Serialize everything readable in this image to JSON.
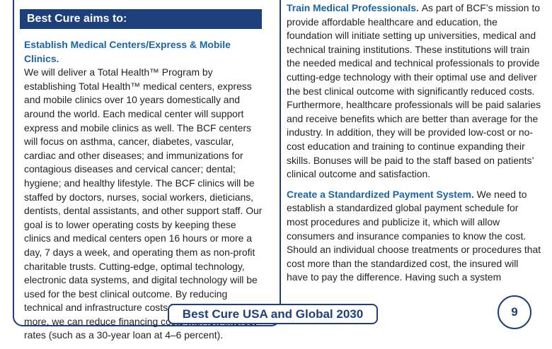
{
  "banner": {
    "title": "Best Cure aims to:"
  },
  "left": {
    "heading": "Establish Medical Centers/Express & Mobile Clinics.",
    "body": "We will deliver a Total Health™ Program by establishing Total Health™ medical centers, express and mobile clinics over 10 years domestically and around the world. Each medical center will support express and mobile clinics as well. The BCF centers will focus on asthma, cancer, diabetes, vascular, cardiac and other diseases; and immunizations for contagious diseases and cervical cancer; dental; hygiene; and healthy lifestyle. The BCF clinics will be staffed by doctors, nurses, social workers, dieticians, dentists, dental assistants, and other support staff. Our goal is to lower operating costs by keeping these clinics and medical centers open 16 hours or more a day, 7 days a week, and operating them as non-profit charitable trusts. Cutting-edge, optimal technology, electronic data systems, and digital technology will be used for the best clinical outcome. By reducing technical and infrastructure costs by 50 percent or more, we can reduce financing costs with low interest rates (such as a 30-year loan at 4–6 percent)."
  },
  "right": {
    "sections": [
      {
        "heading": "Train Medical Professionals.",
        "body": "As part of BCF’s mission to provide affordable healthcare and education, the foundation will initiate setting up universities, medical and technical training institutions. These institutions will train the needed medical and technical professionals to provide cutting-edge technology with their optimal use and deliver the best clinical outcome with significantly reduced costs. Furthermore, healthcare professionals will be paid salaries and receive benefits which are better than average for the industry. In addition, they will be provided low-cost or no-cost education and training to continue expanding their skills. Bonuses will be paid to the staff based on patients’ clinical outcome and satisfaction."
      },
      {
        "heading": "Create a Standardized Payment System.",
        "body": "We need to establish a standardized global payment schedule for most procedures and publicize it, which will allow consumers and insurance companies to know the cost. Should an individual choose treatments or procedures that cost more than the standardized cost, the insured will have to pay the difference. Having such a system"
      }
    ]
  },
  "footer": {
    "title": "Best Cure USA and Global 2030",
    "page_number": "9"
  },
  "colors": {
    "navy": "#1d3f7c",
    "heading_blue": "#1a64a8",
    "text": "#231f20"
  }
}
